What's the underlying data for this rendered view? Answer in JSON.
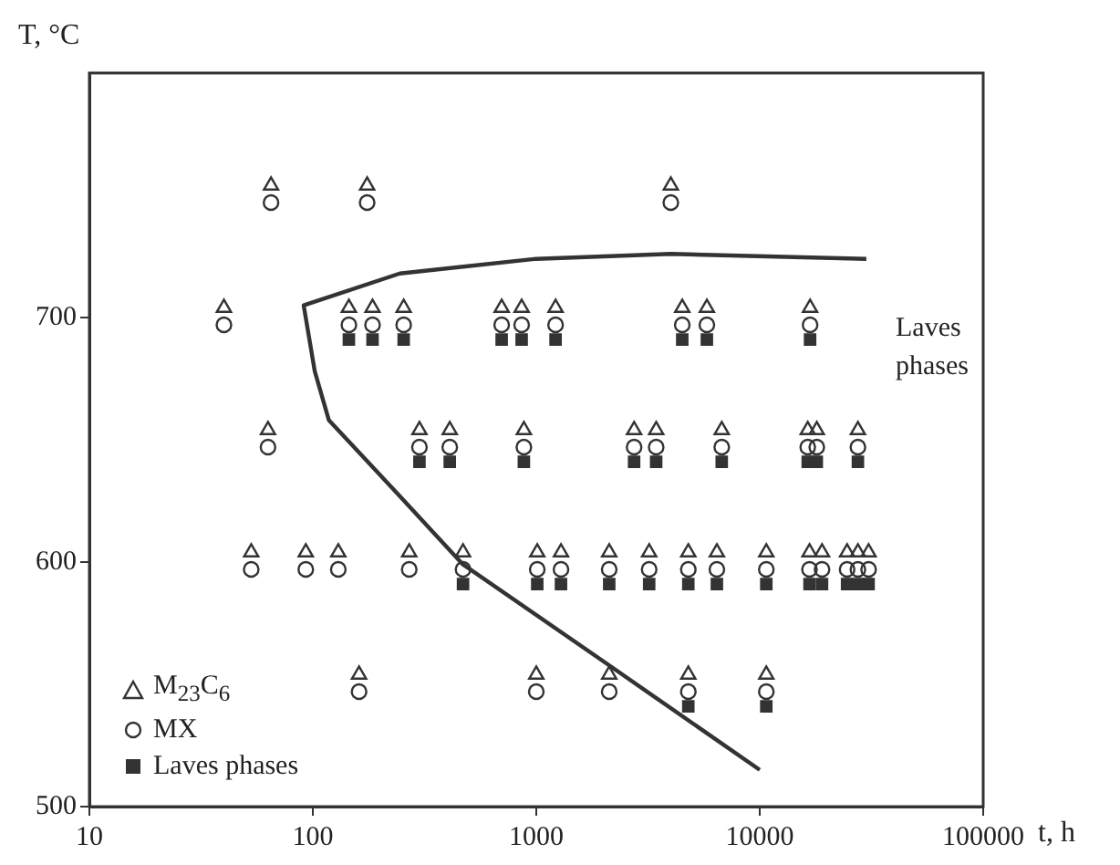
{
  "chart_data": {
    "type": "scatter",
    "xlabel": "t, h",
    "ylabel": "T, °C",
    "log": "x",
    "xlim": [
      10,
      100000
    ],
    "xticks": [
      10,
      100,
      1000,
      10000,
      100000
    ],
    "ylim": [
      500,
      800
    ],
    "yticks": [
      500,
      600,
      700
    ],
    "grid": false,
    "legend": "bottom left",
    "annotations": [
      "Laves phases"
    ],
    "series": [
      {
        "name": "M$_{23}$C$_{6}$",
        "type": "scatter",
        "marker": "triangle",
        "color": "#333333",
        "x": [
          65,
          175,
          4000,
          40,
          145,
          185,
          255,
          700,
          860,
          1220,
          4500,
          5800,
          16800,
          63,
          300,
          410,
          880,
          2740,
          3440,
          6760,
          16400,
          18000,
          27500,
          53,
          93,
          130,
          270,
          470,
          1010,
          1290,
          2120,
          3200,
          4790,
          6430,
          10700,
          16700,
          19000,
          24600,
          27500,
          30700,
          161,
          1000,
          2120,
          4790,
          10700
        ],
        "values": [
          754,
          754,
          754,
          704,
          704,
          704,
          704,
          704,
          704,
          704,
          704,
          704,
          704,
          654,
          654,
          654,
          654,
          654,
          654,
          654,
          654,
          654,
          654,
          604,
          604,
          604,
          604,
          604,
          604,
          604,
          604,
          604,
          604,
          604,
          604,
          604,
          604,
          604,
          604,
          604,
          554,
          554,
          554,
          554,
          554
        ]
      },
      {
        "name": "MX",
        "type": "scatter",
        "marker": "circle",
        "color": "#333333",
        "x": [
          65,
          175,
          4000,
          40,
          145,
          185,
          255,
          700,
          860,
          1220,
          4500,
          5800,
          16800,
          63,
          300,
          410,
          880,
          2740,
          3440,
          6760,
          16400,
          18000,
          27500,
          53,
          93,
          130,
          270,
          470,
          1010,
          1290,
          2120,
          3200,
          4790,
          6430,
          10700,
          16700,
          19000,
          24600,
          27500,
          30700,
          161,
          1000,
          2120,
          4790,
          10700
        ],
        "values": [
          747,
          747,
          747,
          697,
          697,
          697,
          697,
          697,
          697,
          697,
          697,
          697,
          697,
          647,
          647,
          647,
          647,
          647,
          647,
          647,
          647,
          647,
          647,
          597,
          597,
          597,
          597,
          597,
          597,
          597,
          597,
          597,
          597,
          597,
          597,
          597,
          597,
          597,
          597,
          597,
          547,
          547,
          547,
          547,
          547
        ]
      },
      {
        "name": "Laves phases",
        "type": "scatter",
        "marker": "square",
        "color": "#333333",
        "x": [
          145,
          185,
          255,
          700,
          860,
          1220,
          4500,
          5800,
          16800,
          300,
          410,
          880,
          2740,
          3440,
          6760,
          16400,
          18000,
          27500,
          470,
          1010,
          1290,
          2120,
          3200,
          4790,
          6430,
          10700,
          16700,
          19000,
          24600,
          27500,
          30700,
          4790,
          10700
        ],
        "values": [
          691,
          691,
          691,
          691,
          691,
          691,
          691,
          691,
          691,
          641,
          641,
          641,
          641,
          641,
          641,
          641,
          641,
          641,
          591,
          591,
          591,
          591,
          591,
          591,
          591,
          591,
          591,
          591,
          591,
          591,
          591,
          541,
          541
        ]
      },
      {
        "type": "line",
        "marker": "none",
        "color": "#333333",
        "x": [
          30000,
          4000,
          1000,
          245,
          91,
          102,
          118,
          245,
          470,
          2100,
          10000
        ],
        "values": [
          724,
          726,
          724,
          718,
          705,
          678,
          658,
          627,
          599,
          558,
          515
        ]
      }
    ]
  }
}
